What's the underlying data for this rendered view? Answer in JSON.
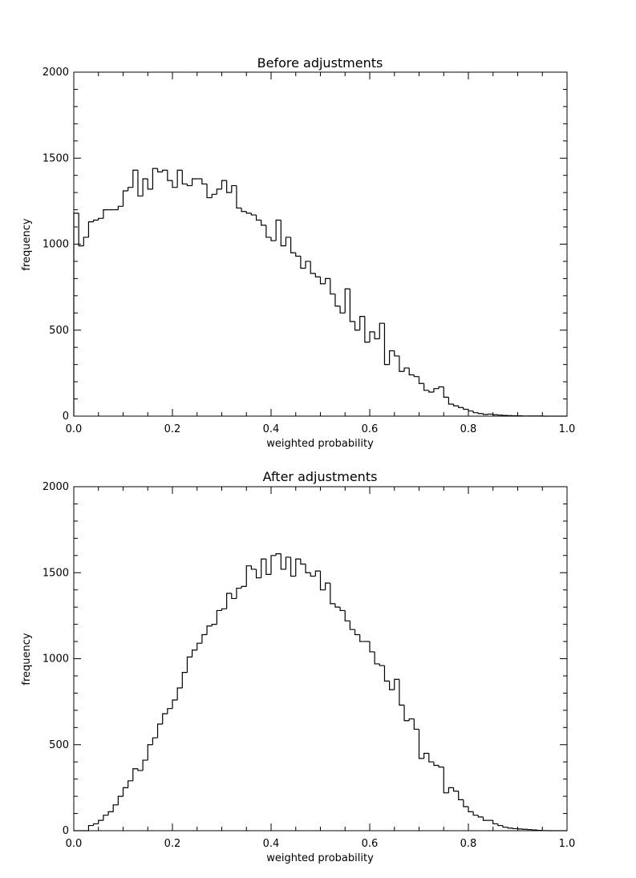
{
  "chart_data": [
    {
      "type": "histogram",
      "title": "Before adjustments",
      "xlabel": "weighted probability",
      "ylabel": "frequency",
      "xlim": [
        0.0,
        1.0
      ],
      "ylim": [
        0,
        2000
      ],
      "xticks": [
        "0.0",
        "0.2",
        "0.4",
        "0.6",
        "0.8",
        "1.0"
      ],
      "yticks": [
        "0",
        "500",
        "1000",
        "1500",
        "2000"
      ],
      "bin_width": 0.01,
      "x_start": 0.0,
      "values": [
        1180,
        990,
        1040,
        1130,
        1140,
        1150,
        1200,
        1200,
        1200,
        1220,
        1310,
        1330,
        1430,
        1280,
        1380,
        1320,
        1440,
        1420,
        1430,
        1370,
        1330,
        1430,
        1350,
        1340,
        1380,
        1380,
        1350,
        1270,
        1290,
        1320,
        1370,
        1300,
        1340,
        1210,
        1190,
        1180,
        1170,
        1140,
        1110,
        1040,
        1020,
        1140,
        990,
        1040,
        950,
        930,
        860,
        900,
        830,
        810,
        770,
        800,
        710,
        640,
        600,
        740,
        550,
        500,
        580,
        430,
        490,
        450,
        540,
        300,
        380,
        350,
        260,
        280,
        240,
        230,
        190,
        150,
        140,
        160,
        170,
        110,
        70,
        60,
        50,
        40,
        30,
        20,
        15,
        10,
        12,
        8,
        6,
        4,
        3,
        2,
        2,
        1,
        1,
        1,
        1,
        0,
        0,
        0,
        0,
        0
      ]
    },
    {
      "type": "histogram",
      "title": "After adjustments",
      "xlabel": "weighted probability",
      "ylabel": "frequency",
      "xlim": [
        0.0,
        1.0
      ],
      "ylim": [
        0,
        2000
      ],
      "xticks": [
        "0.0",
        "0.2",
        "0.4",
        "0.6",
        "0.8",
        "1.0"
      ],
      "yticks": [
        "0",
        "500",
        "1000",
        "1500",
        "2000"
      ],
      "bin_width": 0.01,
      "x_start": 0.0,
      "values": [
        0,
        0,
        0,
        30,
        40,
        60,
        90,
        110,
        150,
        200,
        250,
        290,
        360,
        350,
        410,
        500,
        540,
        620,
        680,
        710,
        760,
        830,
        920,
        1010,
        1050,
        1090,
        1140,
        1190,
        1200,
        1280,
        1290,
        1380,
        1350,
        1410,
        1420,
        1540,
        1520,
        1470,
        1580,
        1490,
        1600,
        1610,
        1520,
        1590,
        1480,
        1580,
        1550,
        1500,
        1480,
        1510,
        1400,
        1440,
        1320,
        1300,
        1280,
        1220,
        1170,
        1140,
        1100,
        1100,
        1040,
        970,
        960,
        870,
        820,
        880,
        730,
        640,
        650,
        590,
        420,
        450,
        400,
        380,
        370,
        220,
        250,
        230,
        180,
        140,
        110,
        90,
        80,
        60,
        60,
        40,
        30,
        20,
        15,
        12,
        10,
        8,
        6,
        4,
        2,
        1,
        0,
        0,
        0,
        0
      ]
    }
  ]
}
